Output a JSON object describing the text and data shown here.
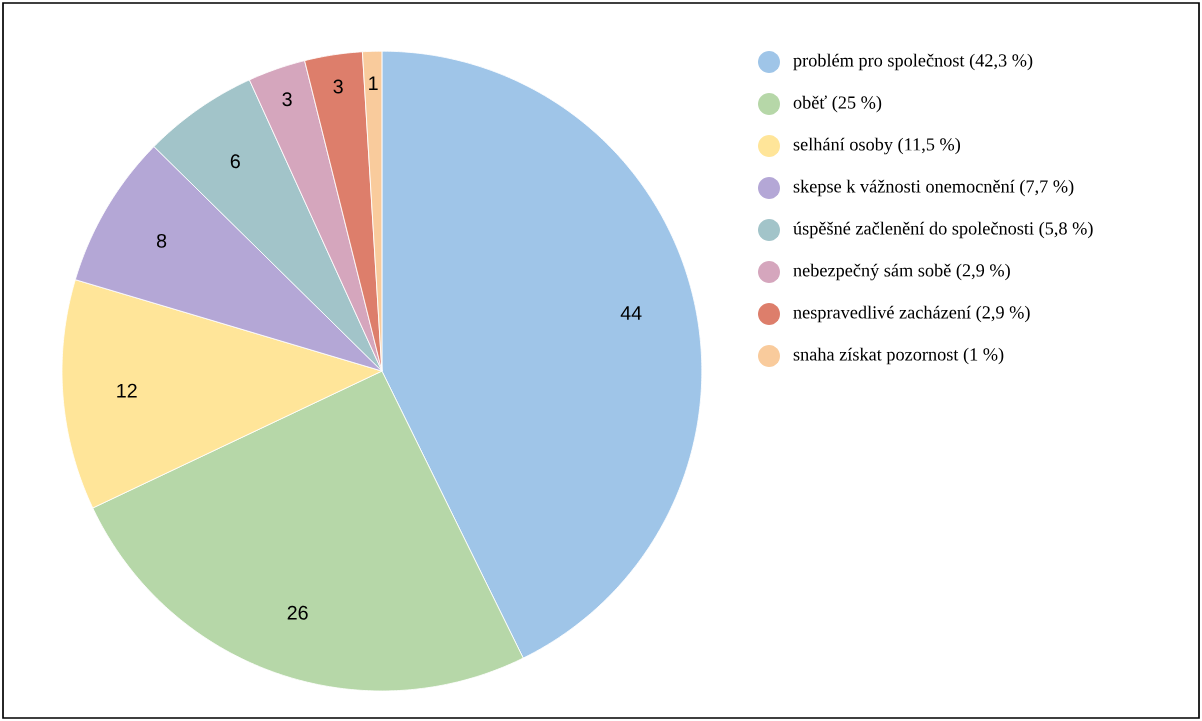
{
  "chart_data": {
    "type": "pie",
    "categories": [
      "problém pro společnost (42,3 %)",
      "oběť (25 %)",
      "selhání osoby (11,5 %)",
      "skepse k vážnosti onemocnění (7,7 %)",
      "úspěšné začlenění do společnosti (5,8 %)",
      "nebezpečný sám sobě (2,9 %)",
      "nespravedlivé zacházení (2,9 %)",
      "snaha získat pozornost (1 %)"
    ],
    "values": [
      44,
      26,
      12,
      8,
      6,
      3,
      3,
      1
    ],
    "colors": [
      "#9fc5e8",
      "#b6d7a8",
      "#ffe599",
      "#b4a7d6",
      "#a2c4c9",
      "#d5a6bd",
      "#dd7e6b",
      "#f9cb9c"
    ],
    "data_labels": true,
    "legend": "top right"
  }
}
